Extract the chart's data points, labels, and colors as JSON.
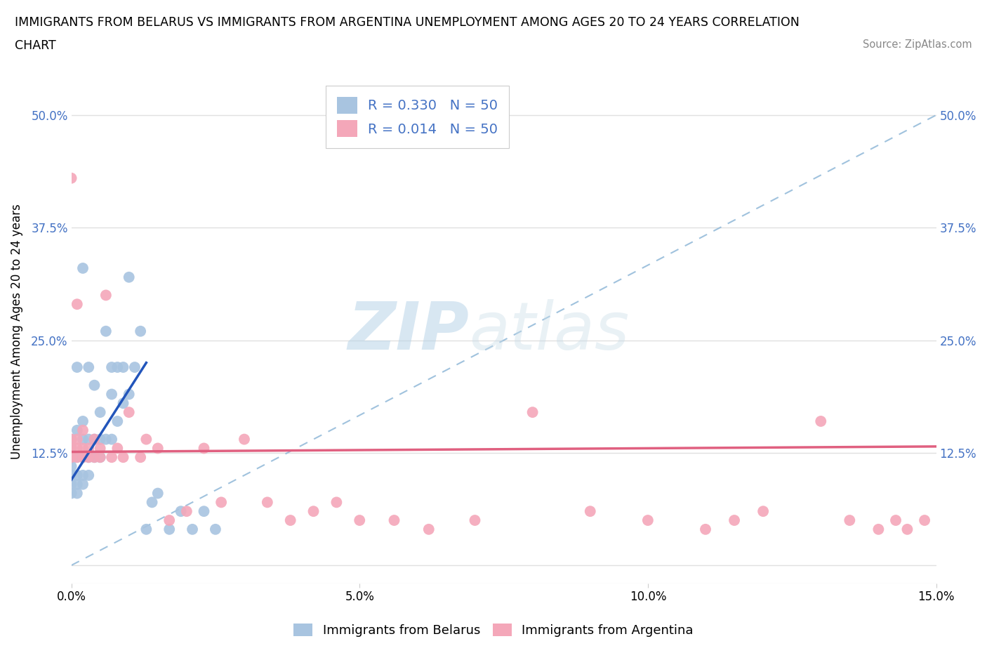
{
  "title_line1": "IMMIGRANTS FROM BELARUS VS IMMIGRANTS FROM ARGENTINA UNEMPLOYMENT AMONG AGES 20 TO 24 YEARS CORRELATION",
  "title_line2": "CHART",
  "source_text": "Source: ZipAtlas.com",
  "ylabel": "Unemployment Among Ages 20 to 24 years",
  "xlim": [
    0.0,
    0.15
  ],
  "ylim": [
    -0.02,
    0.54
  ],
  "yticks": [
    0.0,
    0.125,
    0.25,
    0.375,
    0.5
  ],
  "ytick_labels": [
    "",
    "12.5%",
    "25.0%",
    "37.5%",
    "50.0%"
  ],
  "xticks": [
    0.0,
    0.05,
    0.1,
    0.15
  ],
  "xtick_labels": [
    "0.0%",
    "5.0%",
    "10.0%",
    "15.0%"
  ],
  "watermark_zip": "ZIP",
  "watermark_atlas": "atlas",
  "belarus_color": "#a8c4e0",
  "argentina_color": "#f4a7b9",
  "belarus_line_color": "#2255bb",
  "argentina_line_color": "#e06080",
  "diag_line_color": "#90b8d8",
  "legend_R_belarus": "R = 0.330",
  "legend_N_belarus": "N = 50",
  "legend_R_argentina": "R = 0.014",
  "legend_N_argentina": "N = 50",
  "legend_label_belarus": "Immigrants from Belarus",
  "legend_label_argentina": "Immigrants from Argentina",
  "belarus_x": [
    0.0,
    0.0,
    0.0,
    0.0,
    0.0,
    0.0,
    0.0,
    0.001,
    0.001,
    0.001,
    0.001,
    0.001,
    0.001,
    0.002,
    0.002,
    0.002,
    0.002,
    0.002,
    0.002,
    0.003,
    0.003,
    0.003,
    0.003,
    0.004,
    0.004,
    0.004,
    0.005,
    0.005,
    0.005,
    0.006,
    0.006,
    0.007,
    0.007,
    0.007,
    0.008,
    0.008,
    0.009,
    0.009,
    0.01,
    0.01,
    0.011,
    0.012,
    0.013,
    0.014,
    0.015,
    0.017,
    0.019,
    0.021,
    0.023,
    0.025
  ],
  "belarus_y": [
    0.08,
    0.09,
    0.1,
    0.11,
    0.12,
    0.13,
    0.14,
    0.08,
    0.09,
    0.1,
    0.12,
    0.15,
    0.22,
    0.09,
    0.1,
    0.12,
    0.14,
    0.16,
    0.33,
    0.1,
    0.12,
    0.14,
    0.22,
    0.12,
    0.14,
    0.2,
    0.12,
    0.14,
    0.17,
    0.14,
    0.26,
    0.14,
    0.19,
    0.22,
    0.16,
    0.22,
    0.18,
    0.22,
    0.19,
    0.32,
    0.22,
    0.26,
    0.04,
    0.07,
    0.08,
    0.04,
    0.06,
    0.04,
    0.06,
    0.04
  ],
  "argentina_x": [
    0.0,
    0.0,
    0.0,
    0.0,
    0.001,
    0.001,
    0.001,
    0.001,
    0.002,
    0.002,
    0.002,
    0.003,
    0.003,
    0.004,
    0.004,
    0.005,
    0.005,
    0.006,
    0.007,
    0.008,
    0.009,
    0.01,
    0.012,
    0.013,
    0.015,
    0.017,
    0.02,
    0.023,
    0.026,
    0.03,
    0.034,
    0.038,
    0.042,
    0.046,
    0.05,
    0.056,
    0.062,
    0.07,
    0.08,
    0.09,
    0.1,
    0.11,
    0.115,
    0.12,
    0.13,
    0.135,
    0.14,
    0.143,
    0.145,
    0.148
  ],
  "argentina_y": [
    0.12,
    0.13,
    0.14,
    0.43,
    0.12,
    0.13,
    0.14,
    0.29,
    0.12,
    0.13,
    0.15,
    0.12,
    0.13,
    0.12,
    0.14,
    0.12,
    0.13,
    0.3,
    0.12,
    0.13,
    0.12,
    0.17,
    0.12,
    0.14,
    0.13,
    0.05,
    0.06,
    0.13,
    0.07,
    0.14,
    0.07,
    0.05,
    0.06,
    0.07,
    0.05,
    0.05,
    0.04,
    0.05,
    0.17,
    0.06,
    0.05,
    0.04,
    0.05,
    0.06,
    0.16,
    0.05,
    0.04,
    0.05,
    0.04,
    0.05
  ],
  "background_color": "#ffffff",
  "grid_color": "#e0e0e0",
  "label_color": "#4472c4"
}
